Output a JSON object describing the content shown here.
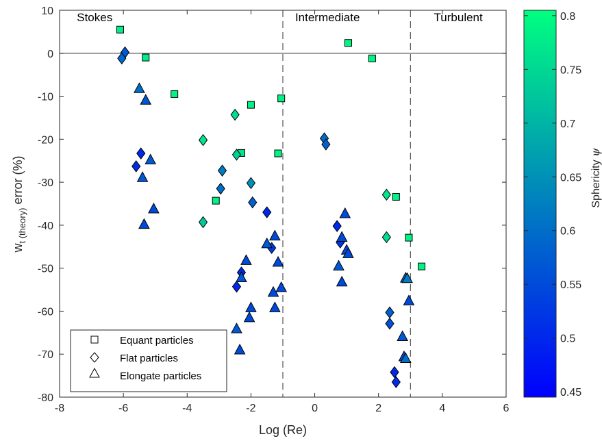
{
  "chart_data": {
    "type": "scatter",
    "title": "",
    "xlabel": "Log (Re)",
    "ylabel_main": "w",
    "ylabel_sub": "t (theory)",
    "ylabel_rest": " error (%)",
    "xlim": [
      -8,
      6
    ],
    "ylim": [
      -80,
      10
    ],
    "xticks": [
      -8,
      -6,
      -4,
      -2,
      0,
      2,
      4,
      6
    ],
    "yticks": [
      10,
      0,
      -10,
      -20,
      -30,
      -40,
      -50,
      -60,
      -70,
      -80
    ],
    "zero_line": 0,
    "regime_boundaries": [
      -1,
      3
    ],
    "regions": [
      {
        "label": "Stokes",
        "x": -6.9
      },
      {
        "label": "Intermediate",
        "x": 0.4
      },
      {
        "label": "Turbulent",
        "x": 4.5
      }
    ],
    "colorbar": {
      "label_prefix": "Sphericity ",
      "label_symbol": "ψ",
      "min": 0.445,
      "max": 0.805,
      "ticks": [
        0.8,
        0.75,
        0.7,
        0.65,
        0.6,
        0.55,
        0.5,
        0.45
      ],
      "color_low": "#0000ff",
      "color_high": "#00ff80"
    },
    "legend": {
      "placement": "bottom-left",
      "entries": [
        {
          "label": "Equant particles",
          "marker": "square"
        },
        {
          "label": "Flat particles",
          "marker": "diamond"
        },
        {
          "label": "Elongate particles",
          "marker": "triangle"
        }
      ]
    },
    "series": [
      {
        "name": "Equant particles",
        "marker": "square",
        "points": [
          {
            "x": -6.1,
            "y": 5.5,
            "s": 0.78
          },
          {
            "x": -5.3,
            "y": -1,
            "s": 0.78
          },
          {
            "x": -4.4,
            "y": -9.5,
            "s": 0.79
          },
          {
            "x": -2.0,
            "y": -12,
            "s": 0.79
          },
          {
            "x": -1.05,
            "y": -10.5,
            "s": 0.79
          },
          {
            "x": -2.3,
            "y": -23.2,
            "s": 0.77
          },
          {
            "x": -1.15,
            "y": -23.3,
            "s": 0.79
          },
          {
            "x": -3.1,
            "y": -34.3,
            "s": 0.79
          },
          {
            "x": 1.05,
            "y": 2.4,
            "s": 0.79
          },
          {
            "x": 1.8,
            "y": -1.2,
            "s": 0.79
          },
          {
            "x": 2.55,
            "y": -33.4,
            "s": 0.79
          },
          {
            "x": 2.95,
            "y": -42.9,
            "s": 0.79
          },
          {
            "x": 3.35,
            "y": -49.6,
            "s": 0.79
          }
        ]
      },
      {
        "name": "Flat particles",
        "marker": "diamond",
        "points": [
          {
            "x": -5.95,
            "y": 0.2,
            "s": 0.57
          },
          {
            "x": -6.05,
            "y": -1.2,
            "s": 0.59
          },
          {
            "x": -3.5,
            "y": -20.2,
            "s": 0.77
          },
          {
            "x": -2.5,
            "y": -14.3,
            "s": 0.76
          },
          {
            "x": -2.45,
            "y": -23.6,
            "s": 0.74
          },
          {
            "x": -5.45,
            "y": -23.3,
            "s": 0.5
          },
          {
            "x": -5.6,
            "y": -26.3,
            "s": 0.51
          },
          {
            "x": -2.9,
            "y": -27.3,
            "s": 0.62
          },
          {
            "x": -2.95,
            "y": -31.5,
            "s": 0.6
          },
          {
            "x": -2.0,
            "y": -30.2,
            "s": 0.65
          },
          {
            "x": -1.95,
            "y": -34.7,
            "s": 0.58
          },
          {
            "x": -3.5,
            "y": -39.3,
            "s": 0.73
          },
          {
            "x": -1.5,
            "y": -37.0,
            "s": 0.5
          },
          {
            "x": -1.35,
            "y": -45.3,
            "s": 0.53
          },
          {
            "x": -2.45,
            "y": -54.3,
            "s": 0.5
          },
          {
            "x": -2.3,
            "y": -51.0,
            "s": 0.5
          },
          {
            "x": 0.3,
            "y": -19.8,
            "s": 0.6
          },
          {
            "x": 0.35,
            "y": -21.2,
            "s": 0.58
          },
          {
            "x": 0.7,
            "y": -40.2,
            "s": 0.5
          },
          {
            "x": 0.8,
            "y": -44.0,
            "s": 0.52
          },
          {
            "x": 2.25,
            "y": -32.9,
            "s": 0.77
          },
          {
            "x": 2.25,
            "y": -42.8,
            "s": 0.76
          },
          {
            "x": 2.35,
            "y": -62.9,
            "s": 0.56
          },
          {
            "x": 2.35,
            "y": -60.3,
            "s": 0.58
          },
          {
            "x": 2.5,
            "y": -74.2,
            "s": 0.5
          },
          {
            "x": 2.55,
            "y": -76.5,
            "s": 0.51
          }
        ]
      },
      {
        "name": "Elongate particles",
        "marker": "triangle",
        "points": [
          {
            "x": -5.5,
            "y": -8.2,
            "s": 0.6
          },
          {
            "x": -5.3,
            "y": -10.9,
            "s": 0.57
          },
          {
            "x": -5.15,
            "y": -24.8,
            "s": 0.57
          },
          {
            "x": -5.4,
            "y": -28.9,
            "s": 0.57
          },
          {
            "x": -5.05,
            "y": -36.2,
            "s": 0.55
          },
          {
            "x": -5.35,
            "y": -39.8,
            "s": 0.55
          },
          {
            "x": -2.15,
            "y": -48.2,
            "s": 0.55
          },
          {
            "x": -2.3,
            "y": -52.2,
            "s": 0.57
          },
          {
            "x": -2.0,
            "y": -59.2,
            "s": 0.55
          },
          {
            "x": -2.05,
            "y": -61.5,
            "s": 0.55
          },
          {
            "x": -2.45,
            "y": -64.1,
            "s": 0.57
          },
          {
            "x": -2.35,
            "y": -69.0,
            "s": 0.55
          },
          {
            "x": -1.5,
            "y": -44.3,
            "s": 0.57
          },
          {
            "x": -1.25,
            "y": -42.5,
            "s": 0.55
          },
          {
            "x": -1.15,
            "y": -48.6,
            "s": 0.55
          },
          {
            "x": -1.3,
            "y": -55.6,
            "s": 0.55
          },
          {
            "x": -1.05,
            "y": -54.5,
            "s": 0.55
          },
          {
            "x": -1.25,
            "y": -59.2,
            "s": 0.55
          },
          {
            "x": 0.95,
            "y": -37.3,
            "s": 0.55
          },
          {
            "x": 0.85,
            "y": -42.8,
            "s": 0.55
          },
          {
            "x": 1.0,
            "y": -45.8,
            "s": 0.55
          },
          {
            "x": 1.05,
            "y": -46.6,
            "s": 0.55
          },
          {
            "x": 0.75,
            "y": -49.5,
            "s": 0.57
          },
          {
            "x": 0.85,
            "y": -53.2,
            "s": 0.55
          },
          {
            "x": 2.85,
            "y": -52.3,
            "s": 0.6
          },
          {
            "x": 2.9,
            "y": -52.4,
            "s": 0.62
          },
          {
            "x": 2.95,
            "y": -57.6,
            "s": 0.55
          },
          {
            "x": 2.75,
            "y": -65.9,
            "s": 0.57
          },
          {
            "x": 2.8,
            "y": -70.6,
            "s": 0.55
          },
          {
            "x": 2.85,
            "y": -71.0,
            "s": 0.6
          }
        ]
      }
    ]
  }
}
